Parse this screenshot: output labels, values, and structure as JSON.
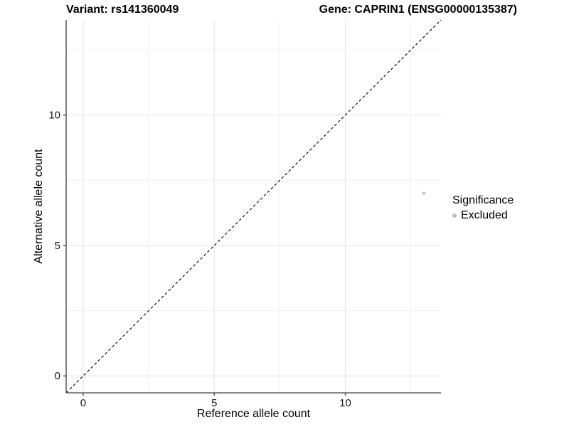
{
  "title": {
    "variant": "Variant: rs141360049",
    "gene": "Gene: CAPRIN1 (ENSG00000135387)"
  },
  "axes": {
    "x_label": "Reference allele count",
    "y_label": "Alternative allele count"
  },
  "legend": {
    "title": "Significance",
    "items": [
      {
        "label": "Excluded",
        "color": "#bebebe",
        "marker": "circle"
      }
    ]
  },
  "chart_data": {
    "type": "scatter",
    "title": "Variant: rs141360049 | Gene: CAPRIN1 (ENSG00000135387)",
    "xlabel": "Reference allele count",
    "ylabel": "Alternative allele count",
    "xlim": [
      -0.65,
      13.65
    ],
    "ylim": [
      -0.65,
      13.65
    ],
    "x_ticks": [
      0,
      5,
      10
    ],
    "y_ticks": [
      0,
      5,
      10
    ],
    "x_minor_ticks": [
      2.5,
      7.5,
      12.5
    ],
    "y_minor_ticks": [
      2.5,
      7.5,
      12.5
    ],
    "grid": "on",
    "legend_position": "right",
    "series": [
      {
        "name": "Excluded",
        "color": "#bebebe",
        "points": [
          {
            "x": 13,
            "y": 7
          }
        ]
      }
    ],
    "reference_line": {
      "kind": "identity y=x",
      "style": "dashed",
      "color": "#000000",
      "x1": -0.65,
      "y1": -0.65,
      "x2": 13.65,
      "y2": 13.65
    }
  },
  "colors": {
    "background": "#ffffff",
    "grid_major": "#e4e4e4",
    "grid_minor": "#f0f0f0",
    "axis_line": "#404040",
    "tick_text": "#1a1a1a",
    "point": "#bebebe"
  }
}
